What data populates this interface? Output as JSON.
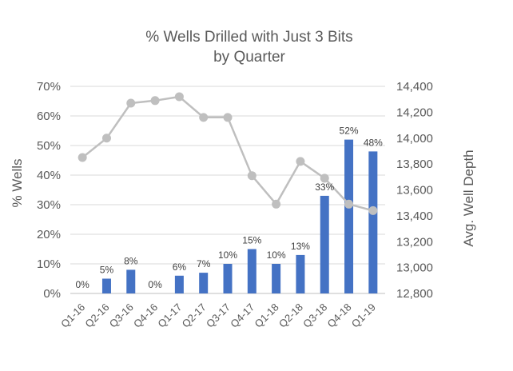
{
  "chart_data": {
    "type": "bar",
    "title": [
      "% Wells Drilled with Just 3 Bits",
      "by Quarter"
    ],
    "categories": [
      "Q1-16",
      "Q2-16",
      "Q3-16",
      "Q4-16",
      "Q1-17",
      "Q2-17",
      "Q3-17",
      "Q4-17",
      "Q1-18",
      "Q2-18",
      "Q3-18",
      "Q4-18",
      "Q1-19"
    ],
    "series": [
      {
        "type": "bar",
        "axis": "left",
        "color": "#4472C4",
        "values": [
          0,
          5,
          8,
          0,
          6,
          7,
          10,
          15,
          10,
          13,
          33,
          52,
          48
        ],
        "data_labels": [
          "0%",
          "5%",
          "8%",
          "0%",
          "6%",
          "7%",
          "10%",
          "15%",
          "10%",
          "13%",
          "33%",
          "52%",
          "48%"
        ]
      },
      {
        "type": "line",
        "axis": "right",
        "color": "#BFBFBF",
        "values": [
          13850,
          14000,
          14270,
          14290,
          14320,
          14160,
          14160,
          13710,
          13490,
          13820,
          13690,
          13490,
          13440
        ]
      }
    ],
    "ylabel_left": "% Wells",
    "ylabel_right": "Avg. Well Depth",
    "y_left": {
      "lim": [
        0,
        70
      ],
      "ticks": [
        "0%",
        "10%",
        "20%",
        "30%",
        "40%",
        "50%",
        "60%",
        "70%"
      ]
    },
    "y_right": {
      "lim": [
        12800,
        14400
      ],
      "ticks": [
        "12,800",
        "13,000",
        "13,200",
        "13,400",
        "13,600",
        "13,800",
        "14,000",
        "14,200",
        "14,400"
      ]
    },
    "grid": true,
    "legend": "none"
  }
}
